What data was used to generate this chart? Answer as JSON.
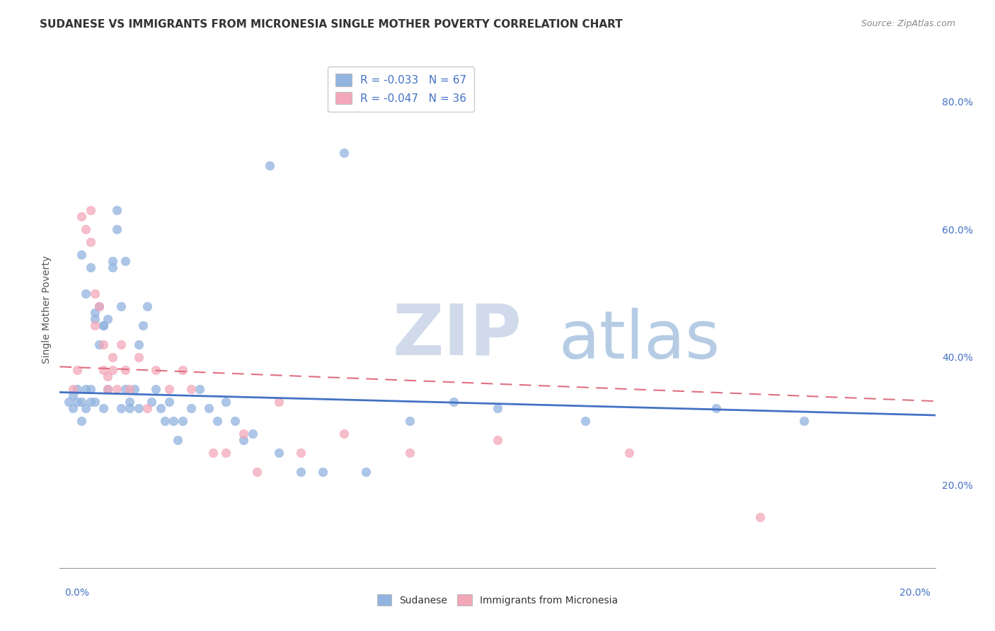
{
  "title": "SUDANESE VS IMMIGRANTS FROM MICRONESIA SINGLE MOTHER POVERTY CORRELATION CHART",
  "source_text": "Source: ZipAtlas.com",
  "ylabel": "Single Mother Poverty",
  "ytick_labels": [
    "20.0%",
    "40.0%",
    "60.0%",
    "80.0%"
  ],
  "ytick_values": [
    0.2,
    0.4,
    0.6,
    0.8
  ],
  "xlim": [
    0.0,
    0.2
  ],
  "ylim": [
    0.07,
    0.88
  ],
  "legend_entry1": "R = -0.033   N = 67",
  "legend_entry2": "R = -0.047   N = 36",
  "legend_label1": "Sudanese",
  "legend_label2": "Immigrants from Micronesia",
  "color_blue": "#92b4e0",
  "color_pink": "#f4a7b9",
  "line_color_blue": "#4472c4",
  "line_color_pink": "#e07080",
  "watermark_zip_color": "#c8d8ee",
  "watermark_atlas_color": "#aac4e0",
  "sudanese_x": [
    0.002,
    0.003,
    0.003,
    0.004,
    0.004,
    0.005,
    0.005,
    0.005,
    0.006,
    0.006,
    0.006,
    0.007,
    0.007,
    0.007,
    0.008,
    0.008,
    0.008,
    0.009,
    0.009,
    0.01,
    0.01,
    0.01,
    0.011,
    0.011,
    0.012,
    0.012,
    0.013,
    0.013,
    0.014,
    0.014,
    0.015,
    0.015,
    0.016,
    0.016,
    0.017,
    0.018,
    0.018,
    0.019,
    0.02,
    0.021,
    0.022,
    0.023,
    0.024,
    0.025,
    0.026,
    0.027,
    0.028,
    0.03,
    0.032,
    0.034,
    0.036,
    0.038,
    0.04,
    0.042,
    0.044,
    0.05,
    0.055,
    0.06,
    0.07,
    0.08,
    0.09,
    0.1,
    0.12,
    0.15,
    0.17,
    0.048,
    0.065
  ],
  "sudanese_y": [
    0.33,
    0.34,
    0.32,
    0.35,
    0.33,
    0.56,
    0.3,
    0.33,
    0.35,
    0.5,
    0.32,
    0.54,
    0.33,
    0.35,
    0.46,
    0.47,
    0.33,
    0.42,
    0.48,
    0.45,
    0.32,
    0.45,
    0.35,
    0.46,
    0.54,
    0.55,
    0.63,
    0.6,
    0.32,
    0.48,
    0.35,
    0.55,
    0.32,
    0.33,
    0.35,
    0.32,
    0.42,
    0.45,
    0.48,
    0.33,
    0.35,
    0.32,
    0.3,
    0.33,
    0.3,
    0.27,
    0.3,
    0.32,
    0.35,
    0.32,
    0.3,
    0.33,
    0.3,
    0.27,
    0.28,
    0.25,
    0.22,
    0.22,
    0.22,
    0.3,
    0.33,
    0.32,
    0.3,
    0.32,
    0.3,
    0.7,
    0.72
  ],
  "micronesia_x": [
    0.003,
    0.004,
    0.005,
    0.006,
    0.007,
    0.007,
    0.008,
    0.008,
    0.009,
    0.01,
    0.01,
    0.011,
    0.011,
    0.012,
    0.012,
    0.013,
    0.014,
    0.015,
    0.016,
    0.018,
    0.02,
    0.022,
    0.025,
    0.028,
    0.03,
    0.035,
    0.038,
    0.042,
    0.045,
    0.05,
    0.055,
    0.065,
    0.08,
    0.1,
    0.13,
    0.16
  ],
  "micronesia_y": [
    0.35,
    0.38,
    0.62,
    0.6,
    0.63,
    0.58,
    0.5,
    0.45,
    0.48,
    0.42,
    0.38,
    0.35,
    0.37,
    0.4,
    0.38,
    0.35,
    0.42,
    0.38,
    0.35,
    0.4,
    0.32,
    0.38,
    0.35,
    0.38,
    0.35,
    0.25,
    0.25,
    0.28,
    0.22,
    0.33,
    0.25,
    0.28,
    0.25,
    0.27,
    0.25,
    0.15
  ],
  "intercept_blue": 0.345,
  "slope_blue": -0.18,
  "intercept_pink": 0.385,
  "slope_pink": -0.27
}
